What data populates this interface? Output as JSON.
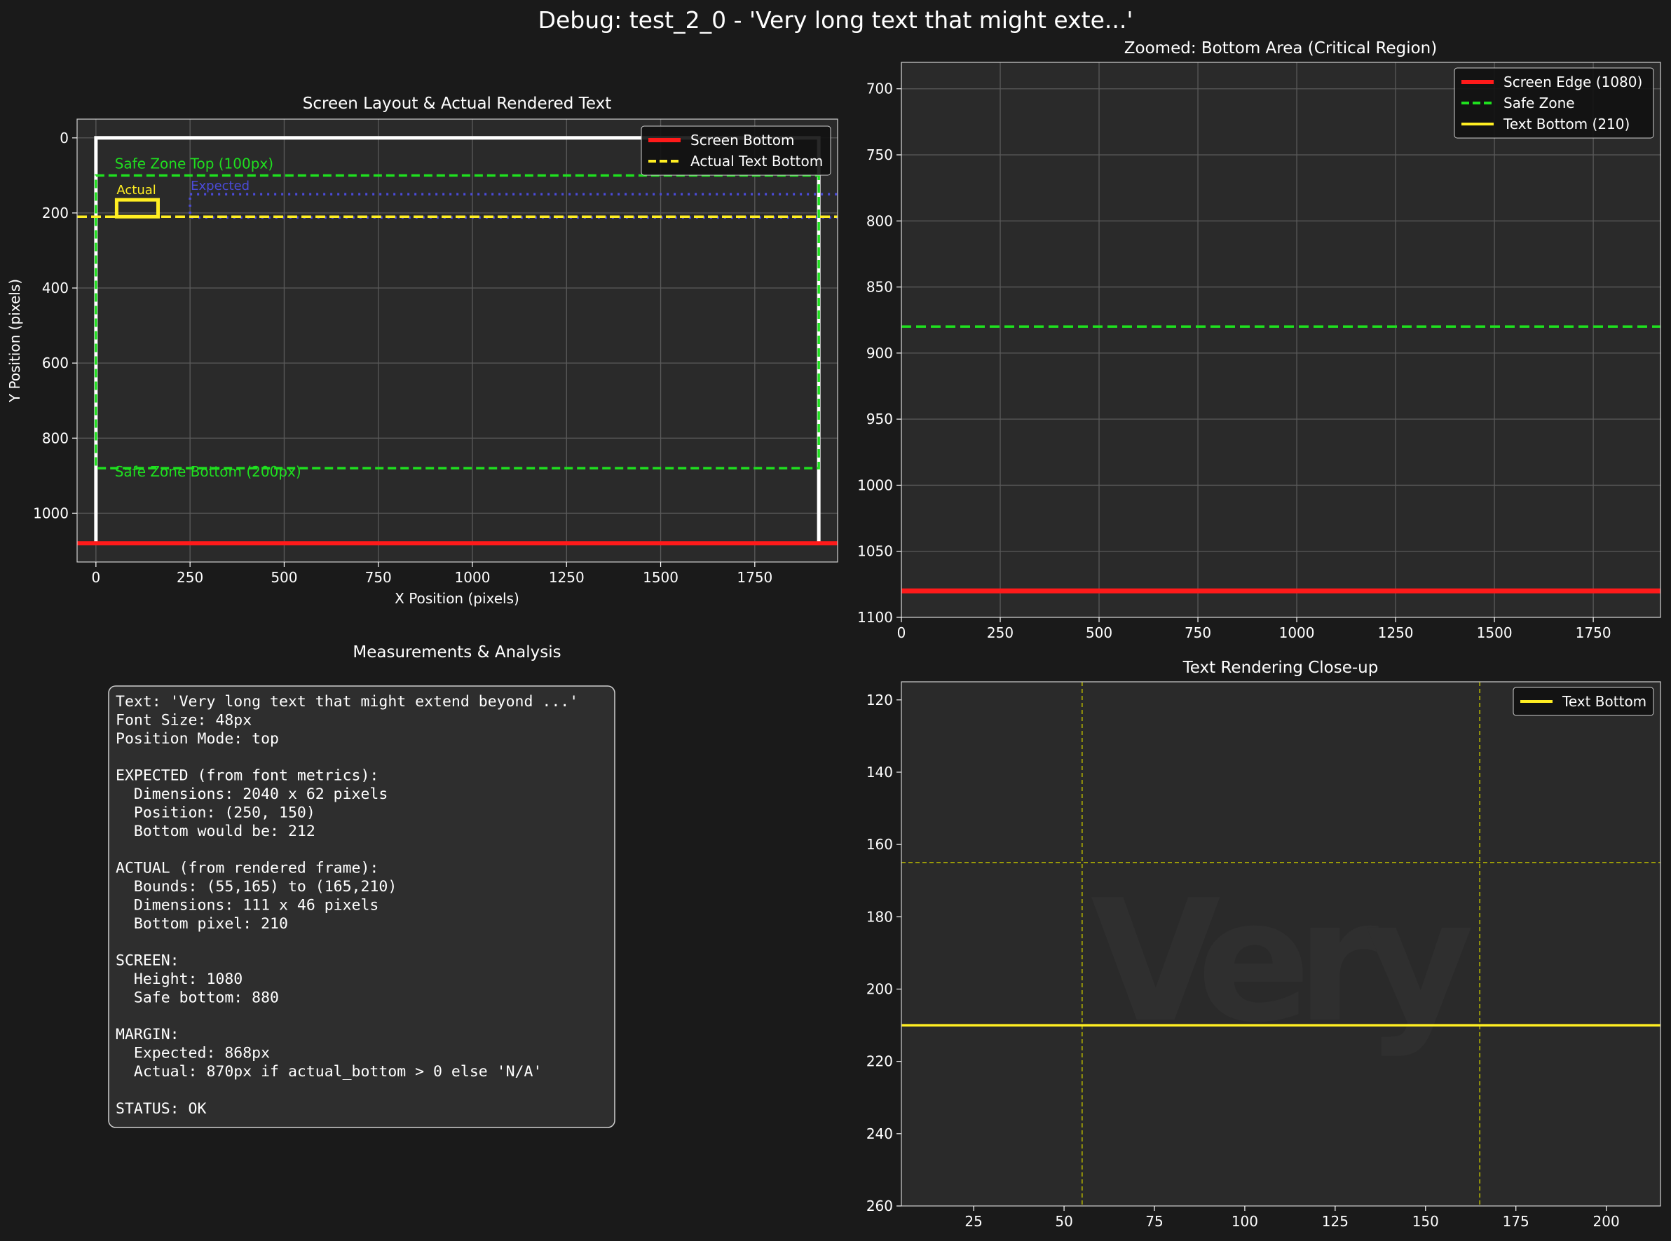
{
  "figure": {
    "suptitle": "Debug: test_2_0 - 'Very long text that might exte...'"
  },
  "colors": {
    "background": "#1a1a1a",
    "axes_face": "#2a2a2a",
    "spine": "#d0d0d0",
    "grid": "#5a5a5a",
    "screen_edge": "#ff1a1a",
    "safe_zone": "#1fe01f",
    "text_bottom": "#ffee22",
    "expected": "#4b4bd8",
    "text_glyph": "#2f2f2f"
  },
  "chart_data": [
    {
      "id": "layout",
      "type": "line",
      "title": "Screen Layout & Actual Rendered Text",
      "xlabel": "X Position (pixels)",
      "ylabel": "Y Position (pixels)",
      "xlim": [
        -50,
        1970
      ],
      "ylim": [
        1130,
        -50
      ],
      "y_inverted": true,
      "xticks": [
        0,
        250,
        500,
        750,
        1000,
        1250,
        1500,
        1750
      ],
      "yticks": [
        0,
        200,
        400,
        600,
        800,
        1000
      ],
      "grid": true,
      "legend_position": "upper right",
      "legend": [
        {
          "label": "Screen Bottom",
          "style": "solid",
          "color": "#ff1a1a"
        },
        {
          "label": "Actual Text Bottom",
          "style": "dashed",
          "color": "#ffee22"
        }
      ],
      "screen": {
        "x": [
          0,
          1920
        ],
        "y": [
          0,
          1080
        ]
      },
      "safe_zone": {
        "x": [
          0,
          1920
        ],
        "y": [
          100,
          880
        ]
      },
      "safe_zone_top_y": 100,
      "safe_zone_bottom_y": 880,
      "screen_bottom_y": 1080,
      "actual_text_bottom_y": 210,
      "actual_box": {
        "x0": 55,
        "y0": 165,
        "x1": 165,
        "y1": 210
      },
      "expected_box": {
        "x0": 250,
        "y0": 150,
        "x1": 2290,
        "y1": 212
      },
      "annotations": {
        "safe_top": "Safe Zone Top (100px)",
        "safe_bottom": "Safe Zone Bottom (200px)",
        "actual": "Actual",
        "expected": "Expected"
      }
    },
    {
      "id": "zoom",
      "type": "line",
      "title": "Zoomed: Bottom Area (Critical Region)",
      "xlim": [
        0,
        1920
      ],
      "ylim": [
        1100,
        680
      ],
      "y_inverted": true,
      "xticks": [
        0,
        250,
        500,
        750,
        1000,
        1250,
        1500,
        1750
      ],
      "yticks": [
        700,
        750,
        800,
        850,
        900,
        950,
        1000,
        1050,
        1100
      ],
      "grid": true,
      "legend_position": "upper right",
      "legend": [
        {
          "label": "Screen Edge (1080)",
          "style": "solid",
          "color": "#ff1a1a"
        },
        {
          "label": "Safe Zone",
          "style": "dashed",
          "color": "#1fe01f"
        },
        {
          "label": "Text Bottom (210)",
          "style": "solid",
          "color": "#ffee22"
        }
      ],
      "hlines": [
        {
          "y": 1080,
          "color": "#ff1a1a",
          "style": "solid"
        },
        {
          "y": 880,
          "color": "#1fe01f",
          "style": "dashed"
        }
      ]
    },
    {
      "id": "closeup",
      "type": "line",
      "title": "Text Rendering Close-up",
      "xlim": [
        5,
        215
      ],
      "ylim": [
        260,
        115
      ],
      "y_inverted": true,
      "xticks": [
        25,
        50,
        75,
        100,
        125,
        150,
        175,
        200
      ],
      "yticks": [
        120,
        140,
        160,
        180,
        200,
        220,
        240,
        260
      ],
      "grid": false,
      "legend_position": "upper right",
      "legend": [
        {
          "label": "Text Bottom",
          "style": "solid",
          "color": "#ffee22"
        }
      ],
      "text_bottom_y": 210,
      "bounds": {
        "x0": 55,
        "x1": 165,
        "y0": 165
      },
      "rendered_text": "Very"
    }
  ],
  "analysis": {
    "title": "Measurements & Analysis",
    "lines": [
      "Text: 'Very long text that might extend beyond ...'",
      "Font Size: 48px",
      "Position Mode: top",
      "",
      "EXPECTED (from font metrics):",
      "  Dimensions: 2040 x 62 pixels",
      "  Position: (250, 150)",
      "  Bottom would be: 212",
      "",
      "ACTUAL (from rendered frame):",
      "  Bounds: (55,165) to (165,210)",
      "  Dimensions: 111 x 46 pixels",
      "  Bottom pixel: 210",
      "",
      "SCREEN:",
      "  Height: 1080",
      "  Safe bottom: 880",
      "",
      "MARGIN:",
      "  Expected: 868px",
      "  Actual: 870px if actual_bottom > 0 else 'N/A'",
      "",
      "STATUS: OK"
    ]
  }
}
